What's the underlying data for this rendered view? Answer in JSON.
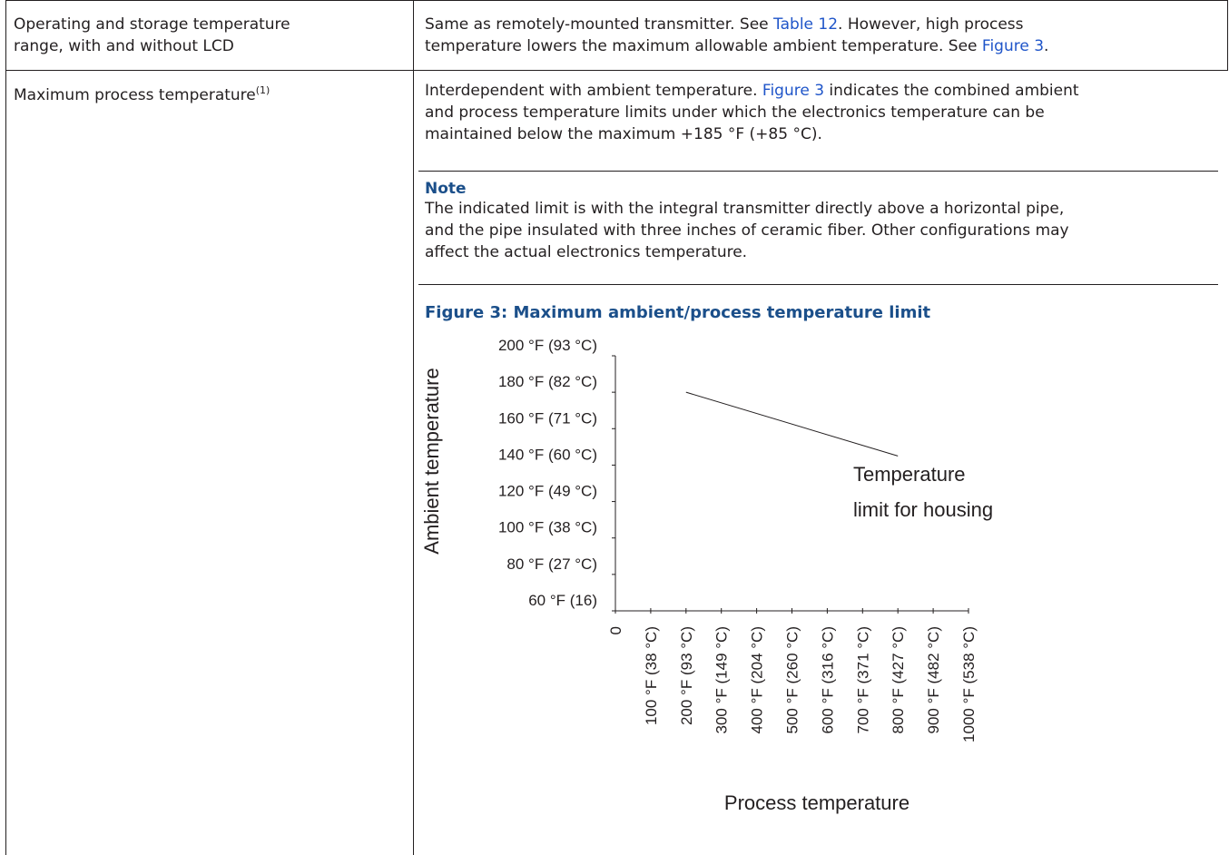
{
  "rows": [
    {
      "label_lines": [
        "Operating and storage temperature",
        "range, with and without LCD"
      ],
      "value": {
        "line1": "Same as remotely-mounted transmitter. See ",
        "link1": "Table 12",
        "line1_end": ". However, high process",
        "line2": "temperature lowers the maximum allowable ambient temperature. See ",
        "link2": "Figure 3",
        "line2_end": "."
      }
    },
    {
      "label": "Maximum process temperature",
      "footnote": "(1)",
      "value": {
        "line1": "Interdependent with ambient temperature. ",
        "link1": "Figure 3",
        "line1_end": " indicates the combined ambient",
        "line2": "and process temperature limits under which the electronics temperature can be",
        "line3": "maintained below the maximum +185 °F (+85 °C)."
      }
    }
  ],
  "note": {
    "title": "Note",
    "lines": [
      "The indicated limit is with the integral transmitter directly above a horizontal pipe,",
      "and the pipe insulated with three inches of ceramic fiber. Other configurations may",
      "affect the actual electronics temperature."
    ]
  },
  "figure_title": "Figure 3: Maximum ambient/process temperature limit",
  "chart_data": {
    "type": "line",
    "title": "",
    "xlabel": "Process temperature",
    "ylabel": "Ambient temperature",
    "x_tick_labels": [
      "0",
      "100 °F (38 °C)",
      "200 °F (93 °C)",
      "300 °F (149 °C)",
      "400 °F (204 °C)",
      "500 °F (260 °C)",
      "600 °F (316 °C)",
      "700 °F (371 °C)",
      "800 °F (427 °C)",
      "900 °F (482 °C)",
      "1000 °F (538 °C)"
    ],
    "y_tick_labels": [
      "60 °F (16)",
      "80 °F (27 °C)",
      "100 °F (38 °C)",
      "120 °F (49 °C)",
      "140 °F (60 °C)",
      "160 °F (71 °C)",
      "180 °F (82 °C)",
      "200 °F (93 °C)"
    ],
    "xlim": [
      0,
      1000
    ],
    "ylim": [
      60,
      200
    ],
    "series": [
      {
        "x": [
          200,
          800
        ],
        "y": [
          180,
          145
        ]
      }
    ],
    "annotation": {
      "lines": [
        "Temperature",
        "limit for housing"
      ]
    },
    "grid": false
  }
}
